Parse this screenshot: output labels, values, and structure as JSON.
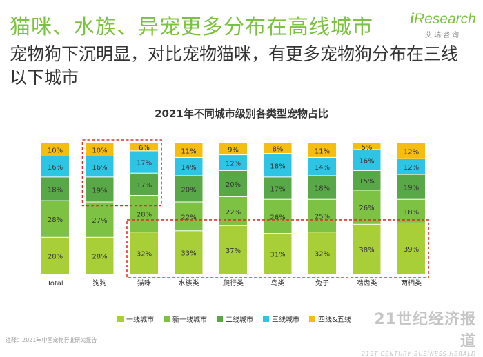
{
  "headline": "猫咪、水族、异宠更多分布在高线城市",
  "subtitle": "宠物狗下沉明显，对比宠物猫咪，有更多宠物狗分布在三线以下城市",
  "brand": {
    "name_i": "i",
    "name_rest": "Research",
    "sub": "艾瑞咨询"
  },
  "watermark": {
    "main": "21世纪经济报道",
    "sub": "21ST CENTURY BUSINESS HERALD"
  },
  "footnote": "注释：2021年中国宠物行业研究报告",
  "chart_data": {
    "type": "bar",
    "stacked": true,
    "percent_labels": true,
    "title": "2021年不同城市级别各类型宠物占比",
    "categories": [
      "Total",
      "狗狗",
      "猫咪",
      "水族类",
      "爬行类",
      "鸟类",
      "兔子",
      "啮齿类",
      "两栖类"
    ],
    "series": [
      {
        "name": "一线城市",
        "color": "#a9cf38",
        "values": [
          28,
          28,
          32,
          33,
          37,
          31,
          32,
          38,
          39
        ]
      },
      {
        "name": "新一线城市",
        "color": "#7dc242",
        "values": [
          28,
          27,
          28,
          22,
          22,
          26,
          25,
          26,
          18
        ]
      },
      {
        "name": "二线城市",
        "color": "#58a847",
        "values": [
          18,
          19,
          17,
          20,
          20,
          17,
          18,
          15,
          19
        ]
      },
      {
        "name": "三线城市",
        "color": "#2ec5e5",
        "values": [
          16,
          16,
          17,
          14,
          12,
          18,
          14,
          16,
          12
        ]
      },
      {
        "name": "四线&五线",
        "color": "#f5bd0f",
        "values": [
          10,
          10,
          6,
          11,
          9,
          8,
          11,
          5,
          12
        ]
      }
    ],
    "ylim": [
      0,
      100
    ],
    "highlights": [
      {
        "categories": [
          "狗狗",
          "猫咪"
        ],
        "series": [
          "二线城市",
          "三线城市",
          "四线&五线"
        ],
        "style": "dashed",
        "color": "#e0302a"
      },
      {
        "categories": [
          "猫咪",
          "水族类",
          "爬行类",
          "鸟类",
          "兔子",
          "啮齿类",
          "两栖类"
        ],
        "series": [
          "一线城市"
        ],
        "style": "dashed",
        "color": "#e0302a"
      }
    ]
  }
}
